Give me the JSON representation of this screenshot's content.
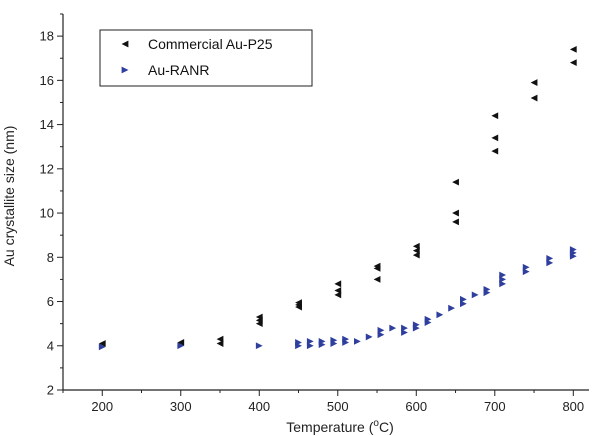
{
  "chart_data": {
    "type": "scatter",
    "xlabel_main": "Temperature (",
    "xlabel_sup": "o",
    "xlabel_end": "C)",
    "ylabel": "Au crystallite size (nm)",
    "xlim": [
      150,
      820
    ],
    "ylim": [
      2,
      19
    ],
    "xticks": [
      200,
      300,
      400,
      500,
      600,
      700,
      800
    ],
    "yticks": [
      2,
      4,
      6,
      8,
      10,
      12,
      14,
      16,
      18
    ],
    "grid": false,
    "legend_placement": "top-left",
    "series": [
      {
        "name": "Commercial Au-P25",
        "color": "#111111",
        "marker": "triangle-left",
        "x": [
          200,
          300,
          350,
          350,
          400,
          400,
          400,
          450,
          450,
          450,
          500,
          500,
          500,
          550,
          550,
          550,
          600,
          600,
          600,
          650,
          650,
          650,
          700,
          700,
          700,
          750,
          750,
          800,
          800
        ],
        "y": [
          4.1,
          4.15,
          4.1,
          4.3,
          5.0,
          5.15,
          5.3,
          5.75,
          5.85,
          5.95,
          6.3,
          6.5,
          6.8,
          7.0,
          7.5,
          7.6,
          8.1,
          8.3,
          8.5,
          9.6,
          10.0,
          11.4,
          12.8,
          13.4,
          14.4,
          15.2,
          15.9,
          16.8,
          17.4
        ]
      },
      {
        "name": "Au-RANR",
        "color": "#2f3f9e",
        "marker": "triangle-right",
        "x": [
          200,
          300,
          400,
          450,
          450,
          465,
          465,
          480,
          480,
          495,
          495,
          510,
          510,
          525,
          540,
          555,
          555,
          570,
          585,
          585,
          600,
          600,
          615,
          615,
          630,
          645,
          660,
          660,
          675,
          690,
          690,
          710,
          710,
          710,
          740,
          740,
          770,
          770,
          800,
          800,
          800
        ],
        "y": [
          3.95,
          4.0,
          4.0,
          4.0,
          4.15,
          4.0,
          4.2,
          4.05,
          4.2,
          4.1,
          4.25,
          4.15,
          4.3,
          4.2,
          4.4,
          4.5,
          4.7,
          4.8,
          4.6,
          4.8,
          4.8,
          4.95,
          5.05,
          5.2,
          5.4,
          5.7,
          5.9,
          6.1,
          6.3,
          6.4,
          6.55,
          6.8,
          7.0,
          7.2,
          7.35,
          7.55,
          7.75,
          7.95,
          8.05,
          8.2,
          8.35
        ]
      }
    ]
  }
}
